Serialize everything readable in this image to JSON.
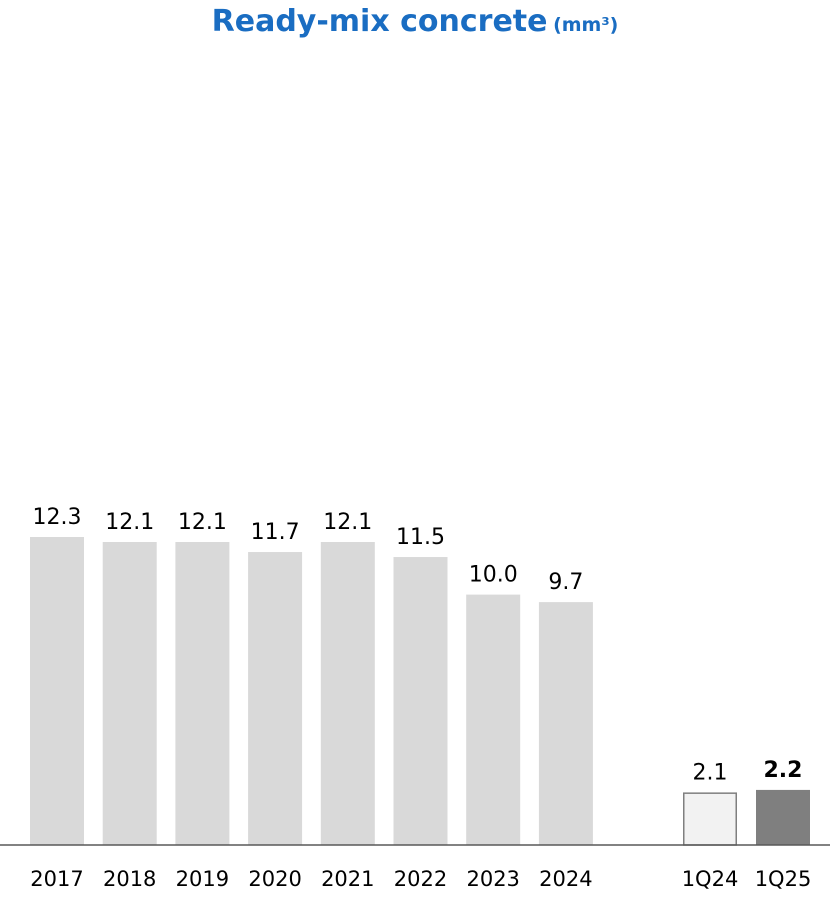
{
  "chart_data": {
    "type": "bar",
    "title": "Ready-mix concrete",
    "title_unit": "(mm³)",
    "categories": [
      "2017",
      "2018",
      "2019",
      "2020",
      "2021",
      "2022",
      "2023",
      "2024",
      "1Q24",
      "1Q25"
    ],
    "values": [
      12.3,
      12.1,
      12.1,
      11.7,
      12.1,
      11.5,
      10.0,
      9.7,
      2.1,
      2.2
    ],
    "value_labels": [
      "12.3",
      "12.1",
      "12.1",
      "11.7",
      "12.1",
      "11.5",
      "10.0",
      "9.7",
      "2.1",
      "2.2"
    ],
    "bar_styles": [
      "annual",
      "annual",
      "annual",
      "annual",
      "annual",
      "annual",
      "annual",
      "annual",
      "prior-quarter",
      "current-quarter"
    ],
    "highlight_index": 9,
    "xlabel": "",
    "ylabel": "",
    "ylim": [
      0,
      12.3
    ],
    "grid": false,
    "legend": "none",
    "colors": {
      "title": "#1a6dc2",
      "annual": "#d9d9d9",
      "prior-quarter": "#f2f2f2",
      "prior-quarter-stroke": "#7f7f7f",
      "current-quarter": "#7f7f7f",
      "axis": "#595959",
      "text": "#000000"
    }
  }
}
